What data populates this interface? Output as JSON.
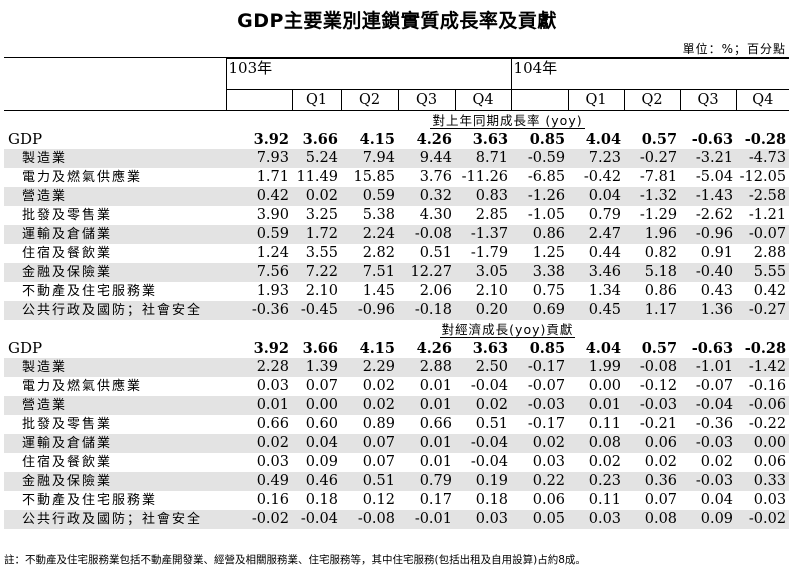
{
  "title": "GDP主要業別連鎖實質成長率及貢獻",
  "unit": "單位：%；百分點",
  "years": [
    "103年",
    "104年"
  ],
  "quarters": [
    "Q1",
    "Q2",
    "Q3",
    "Q4"
  ],
  "sections": [
    {
      "title": "對上年同期成長率 (yoy)",
      "gdp": {
        "label": "GDP",
        "y103": [
          "3.92",
          "3.66",
          "4.15",
          "4.26",
          "3.63"
        ],
        "y104": [
          "0.85",
          "4.04",
          "0.57",
          "-0.63",
          "-0.28"
        ]
      },
      "rows": [
        {
          "label": "製造業",
          "y103": [
            "7.93",
            "5.24",
            "7.94",
            "9.44",
            "8.71"
          ],
          "y104": [
            "-0.59",
            "7.23",
            "-0.27",
            "-3.21",
            "-4.73"
          ]
        },
        {
          "label": "電力及燃氣供應業",
          "y103": [
            "1.71",
            "11.49",
            "15.85",
            "3.76",
            "-11.26"
          ],
          "y104": [
            "-6.85",
            "-0.42",
            "-7.81",
            "-5.04",
            "-12.05"
          ]
        },
        {
          "label": "營造業",
          "y103": [
            "0.42",
            "0.02",
            "0.59",
            "0.32",
            "0.83"
          ],
          "y104": [
            "-1.26",
            "0.04",
            "-1.32",
            "-1.43",
            "-2.58"
          ]
        },
        {
          "label": "批發及零售業",
          "y103": [
            "3.90",
            "3.25",
            "5.38",
            "4.30",
            "2.85"
          ],
          "y104": [
            "-1.05",
            "0.79",
            "-1.29",
            "-2.62",
            "-1.21"
          ]
        },
        {
          "label": "運輸及倉儲業",
          "y103": [
            "0.59",
            "1.72",
            "2.24",
            "-0.08",
            "-1.37"
          ],
          "y104": [
            "0.86",
            "2.47",
            "1.96",
            "-0.96",
            "-0.07"
          ]
        },
        {
          "label": "住宿及餐飲業",
          "y103": [
            "1.24",
            "3.55",
            "2.82",
            "0.51",
            "-1.79"
          ],
          "y104": [
            "1.25",
            "0.44",
            "0.82",
            "0.91",
            "2.88"
          ]
        },
        {
          "label": "金融及保險業",
          "y103": [
            "7.56",
            "7.22",
            "7.51",
            "12.27",
            "3.05"
          ],
          "y104": [
            "3.38",
            "3.46",
            "5.18",
            "-0.40",
            "5.55"
          ]
        },
        {
          "label": "不動產及住宅服務業",
          "y103": [
            "1.93",
            "2.10",
            "1.45",
            "2.06",
            "2.10"
          ],
          "y104": [
            "0.75",
            "1.34",
            "0.86",
            "0.43",
            "0.42"
          ]
        },
        {
          "label": "公共行政及國防；社會安全",
          "y103": [
            "-0.36",
            "-0.45",
            "-0.96",
            "-0.18",
            "0.20"
          ],
          "y104": [
            "0.69",
            "0.45",
            "1.17",
            "1.36",
            "-0.27"
          ]
        }
      ]
    },
    {
      "title": "對經濟成長(yoy)貢獻",
      "gdp": {
        "label": "GDP",
        "y103": [
          "3.92",
          "3.66",
          "4.15",
          "4.26",
          "3.63"
        ],
        "y104": [
          "0.85",
          "4.04",
          "0.57",
          "-0.63",
          "-0.28"
        ]
      },
      "rows": [
        {
          "label": "製造業",
          "y103": [
            "2.28",
            "1.39",
            "2.29",
            "2.88",
            "2.50"
          ],
          "y104": [
            "-0.17",
            "1.99",
            "-0.08",
            "-1.01",
            "-1.42"
          ]
        },
        {
          "label": "電力及燃氣供應業",
          "y103": [
            "0.03",
            "0.07",
            "0.02",
            "0.01",
            "-0.04"
          ],
          "y104": [
            "-0.07",
            "0.00",
            "-0.12",
            "-0.07",
            "-0.16"
          ]
        },
        {
          "label": "營造業",
          "y103": [
            "0.01",
            "0.00",
            "0.02",
            "0.01",
            "0.02"
          ],
          "y104": [
            "-0.03",
            "0.01",
            "-0.03",
            "-0.04",
            "-0.06"
          ]
        },
        {
          "label": "批發及零售業",
          "y103": [
            "0.66",
            "0.60",
            "0.89",
            "0.66",
            "0.51"
          ],
          "y104": [
            "-0.17",
            "0.11",
            "-0.21",
            "-0.36",
            "-0.22"
          ]
        },
        {
          "label": "運輸及倉儲業",
          "y103": [
            "0.02",
            "0.04",
            "0.07",
            "0.01",
            "-0.04"
          ],
          "y104": [
            "0.02",
            "0.08",
            "0.06",
            "-0.03",
            "0.00"
          ]
        },
        {
          "label": "住宿及餐飲業",
          "y103": [
            "0.03",
            "0.09",
            "0.07",
            "0.01",
            "-0.04"
          ],
          "y104": [
            "0.03",
            "0.02",
            "0.02",
            "0.02",
            "0.06"
          ]
        },
        {
          "label": "金融及保險業",
          "y103": [
            "0.49",
            "0.46",
            "0.51",
            "0.79",
            "0.19"
          ],
          "y104": [
            "0.22",
            "0.23",
            "0.36",
            "-0.03",
            "0.33"
          ]
        },
        {
          "label": "不動產及住宅服務業",
          "y103": [
            "0.16",
            "0.18",
            "0.12",
            "0.17",
            "0.18"
          ],
          "y104": [
            "0.06",
            "0.11",
            "0.07",
            "0.04",
            "0.03"
          ]
        },
        {
          "label": "公共行政及國防；社會安全",
          "y103": [
            "-0.02",
            "-0.04",
            "-0.08",
            "-0.01",
            "0.03"
          ],
          "y104": [
            "0.05",
            "0.03",
            "0.08",
            "0.09",
            "-0.02"
          ]
        }
      ]
    }
  ],
  "note": "註：不動產及住宅服務業包括不動產開發業、經營及相關服務業、住宅服務等，其中住宅服務(包括出租及自用設算)占約8成。"
}
